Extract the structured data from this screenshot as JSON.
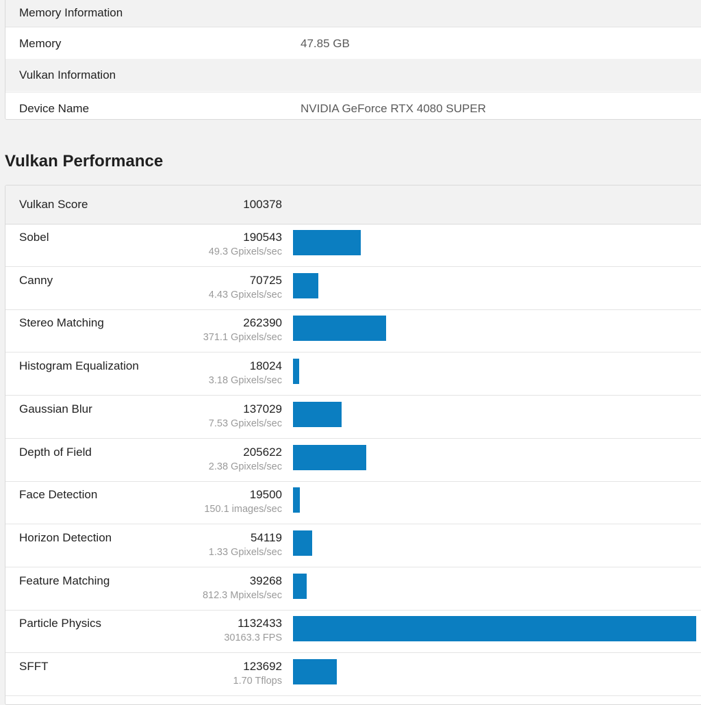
{
  "memory_section": {
    "header": "Memory Information",
    "rows": [
      {
        "label": "Memory",
        "value": "47.85 GB"
      }
    ]
  },
  "vulkan_section": {
    "header": "Vulkan Information",
    "rows": [
      {
        "label": "Device Name",
        "value": "NVIDIA GeForce RTX 4080 SUPER"
      }
    ]
  },
  "performance": {
    "title": "Vulkan Performance",
    "score_label": "Vulkan Score",
    "score_value": "100378",
    "max_score": 1132433,
    "bar_color": "#0b7ec1",
    "benchmarks": [
      {
        "name": "Sobel",
        "score": 190543,
        "detail": "49.3 Gpixels/sec"
      },
      {
        "name": "Canny",
        "score": 70725,
        "detail": "4.43 Gpixels/sec"
      },
      {
        "name": "Stereo Matching",
        "score": 262390,
        "detail": "371.1 Gpixels/sec"
      },
      {
        "name": "Histogram Equalization",
        "score": 18024,
        "detail": "3.18 Gpixels/sec"
      },
      {
        "name": "Gaussian Blur",
        "score": 137029,
        "detail": "7.53 Gpixels/sec"
      },
      {
        "name": "Depth of Field",
        "score": 205622,
        "detail": "2.38 Gpixels/sec"
      },
      {
        "name": "Face Detection",
        "score": 19500,
        "detail": "150.1 images/sec"
      },
      {
        "name": "Horizon Detection",
        "score": 54119,
        "detail": "1.33 Gpixels/sec"
      },
      {
        "name": "Feature Matching",
        "score": 39268,
        "detail": "812.3 Mpixels/sec"
      },
      {
        "name": "Particle Physics",
        "score": 1132433,
        "detail": "30163.3 FPS"
      },
      {
        "name": "SFFT",
        "score": 123692,
        "detail": "1.70 Tflops"
      }
    ]
  }
}
